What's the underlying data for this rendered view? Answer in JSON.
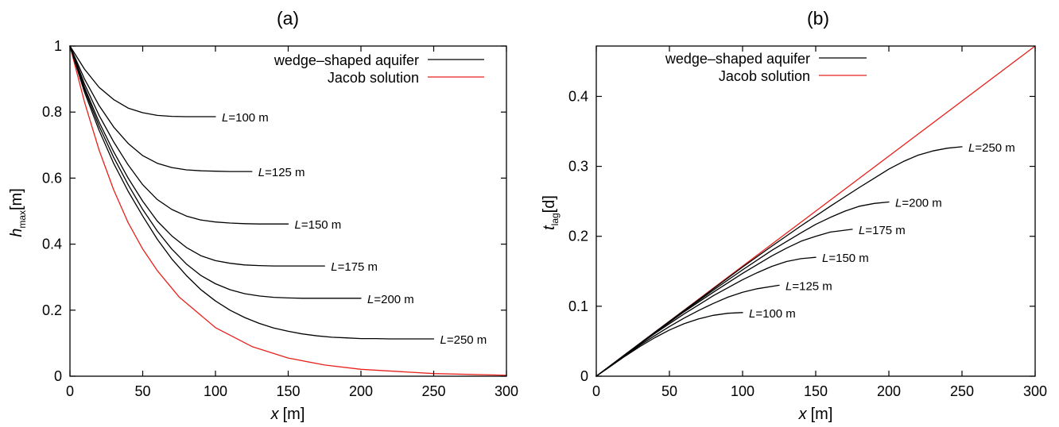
{
  "chart_data": [
    {
      "type": "line",
      "title": "(a)",
      "xlabel": {
        "symbol": "x",
        "unit": "[m]"
      },
      "ylabel": {
        "symbol": "h",
        "sub": "max",
        "unit": "[m]"
      },
      "xlim": [
        0,
        300
      ],
      "ylim": [
        0,
        1
      ],
      "xticks": [
        0,
        50,
        100,
        150,
        200,
        250,
        300
      ],
      "yticks": [
        0,
        0.2,
        0.4,
        0.6,
        0.8,
        1
      ],
      "ytick_labels": [
        "0",
        "0.2",
        "0.4",
        "0.6",
        "0.8",
        "1"
      ],
      "grid": false,
      "legend": {
        "placement": "top-right",
        "entries": [
          {
            "label": "wedge–shaped aquifer",
            "color": "#000000"
          },
          {
            "label": "Jacob solution",
            "color": "#e8211c"
          }
        ]
      },
      "series": [
        {
          "name": "Jacob solution",
          "color": "#e8211c",
          "x": [
            0,
            10,
            20,
            30,
            40,
            50,
            60,
            75,
            100,
            125,
            150,
            175,
            200,
            250,
            300
          ],
          "y": [
            1.0,
            0.83,
            0.685,
            0.565,
            0.465,
            0.385,
            0.32,
            0.24,
            0.147,
            0.09,
            0.055,
            0.034,
            0.021,
            0.008,
            0.003
          ]
        },
        {
          "label": "L=100 m",
          "color": "#000000",
          "x": [
            0,
            10,
            20,
            30,
            40,
            50,
            60,
            70,
            80,
            90,
            100
          ],
          "y": [
            1.0,
            0.93,
            0.875,
            0.838,
            0.812,
            0.798,
            0.79,
            0.787,
            0.786,
            0.786,
            0.786
          ]
        },
        {
          "label": "L=125 m",
          "color": "#000000",
          "x": [
            0,
            10,
            20,
            30,
            40,
            50,
            60,
            70,
            80,
            90,
            100,
            110,
            125
          ],
          "y": [
            1.0,
            0.9,
            0.82,
            0.755,
            0.705,
            0.668,
            0.645,
            0.632,
            0.625,
            0.622,
            0.621,
            0.62,
            0.62
          ]
        },
        {
          "label": "L=150 m",
          "color": "#000000",
          "x": [
            0,
            10,
            20,
            30,
            40,
            50,
            60,
            70,
            80,
            90,
            100,
            110,
            120,
            130,
            150
          ],
          "y": [
            1.0,
            0.885,
            0.79,
            0.71,
            0.64,
            0.58,
            0.535,
            0.505,
            0.485,
            0.473,
            0.467,
            0.464,
            0.462,
            0.461,
            0.461
          ]
        },
        {
          "label": "L=175 m",
          "color": "#000000",
          "x": [
            0,
            10,
            20,
            30,
            40,
            50,
            60,
            70,
            80,
            90,
            100,
            110,
            120,
            130,
            140,
            150,
            175
          ],
          "y": [
            1.0,
            0.875,
            0.77,
            0.68,
            0.6,
            0.53,
            0.47,
            0.425,
            0.39,
            0.365,
            0.35,
            0.342,
            0.337,
            0.335,
            0.334,
            0.334,
            0.334
          ]
        },
        {
          "label": "L=200 m",
          "color": "#000000",
          "x": [
            0,
            10,
            20,
            30,
            40,
            50,
            60,
            70,
            80,
            90,
            100,
            110,
            120,
            130,
            140,
            150,
            160,
            170,
            180,
            200
          ],
          "y": [
            1.0,
            0.868,
            0.758,
            0.663,
            0.58,
            0.505,
            0.44,
            0.385,
            0.34,
            0.305,
            0.28,
            0.262,
            0.25,
            0.243,
            0.239,
            0.237,
            0.236,
            0.236,
            0.236,
            0.236
          ]
        },
        {
          "label": "L=250 m",
          "color": "#000000",
          "x": [
            0,
            10,
            20,
            30,
            40,
            50,
            60,
            70,
            80,
            90,
            100,
            110,
            120,
            130,
            140,
            150,
            160,
            170,
            180,
            190,
            200,
            210,
            220,
            230,
            250
          ],
          "y": [
            1.0,
            0.86,
            0.745,
            0.645,
            0.56,
            0.485,
            0.415,
            0.355,
            0.305,
            0.262,
            0.228,
            0.2,
            0.178,
            0.16,
            0.146,
            0.136,
            0.128,
            0.122,
            0.118,
            0.116,
            0.114,
            0.114,
            0.113,
            0.113,
            0.113
          ]
        }
      ],
      "curve_labels": [
        {
          "prefix": "L",
          "text": "=100 m"
        },
        {
          "prefix": "L",
          "text": "=125 m"
        },
        {
          "prefix": "L",
          "text": "=150 m"
        },
        {
          "prefix": "L",
          "text": "=175 m"
        },
        {
          "prefix": "L",
          "text": "=200 m"
        },
        {
          "prefix": "L",
          "text": "=250 m"
        }
      ]
    },
    {
      "type": "line",
      "title": "(b)",
      "xlabel": {
        "symbol": "x",
        "unit": "[m]"
      },
      "ylabel": {
        "symbol": "t",
        "sub": "lag",
        "unit": "[d]"
      },
      "xlim": [
        0,
        300
      ],
      "ylim": [
        0,
        0.472
      ],
      "xticks": [
        0,
        50,
        100,
        150,
        200,
        250,
        300
      ],
      "yticks": [
        0,
        0.1,
        0.2,
        0.3,
        0.4
      ],
      "ytick_labels": [
        "0",
        "0.1",
        "0.2",
        "0.3",
        "0.4"
      ],
      "grid": false,
      "legend": {
        "placement": "top-left",
        "entries": [
          {
            "label": "wedge–shaped aquifer",
            "color": "#000000"
          },
          {
            "label": "Jacob solution",
            "color": "#e8211c"
          }
        ]
      },
      "series": [
        {
          "name": "Jacob solution",
          "color": "#e8211c",
          "x": [
            0,
            300
          ],
          "y": [
            0,
            0.472
          ]
        },
        {
          "label": "L=100 m",
          "color": "#000000",
          "x": [
            0,
            10,
            20,
            30,
            40,
            50,
            60,
            70,
            80,
            90,
            100
          ],
          "y": [
            0,
            0.0145,
            0.029,
            0.0425,
            0.055,
            0.066,
            0.075,
            0.082,
            0.087,
            0.09,
            0.091
          ]
        },
        {
          "label": "L=125 m",
          "color": "#000000",
          "x": [
            0,
            10,
            20,
            30,
            40,
            50,
            60,
            70,
            80,
            90,
            100,
            110,
            125
          ],
          "y": [
            0,
            0.015,
            0.03,
            0.0445,
            0.058,
            0.071,
            0.083,
            0.094,
            0.104,
            0.113,
            0.12,
            0.125,
            0.13
          ]
        },
        {
          "label": "L=150 m",
          "color": "#000000",
          "x": [
            0,
            20,
            40,
            60,
            80,
            100,
            110,
            120,
            130,
            140,
            150
          ],
          "y": [
            0,
            0.031,
            0.061,
            0.089,
            0.115,
            0.138,
            0.148,
            0.157,
            0.164,
            0.168,
            0.17
          ]
        },
        {
          "label": "L=175 m",
          "color": "#000000",
          "x": [
            0,
            20,
            40,
            60,
            80,
            100,
            120,
            130,
            140,
            150,
            160,
            175
          ],
          "y": [
            0,
            0.031,
            0.062,
            0.092,
            0.12,
            0.147,
            0.172,
            0.183,
            0.193,
            0.2,
            0.206,
            0.21
          ]
        },
        {
          "label": "L=200 m",
          "color": "#000000",
          "x": [
            0,
            20,
            40,
            60,
            80,
            100,
            120,
            140,
            150,
            160,
            170,
            180,
            190,
            200
          ],
          "y": [
            0,
            0.031,
            0.062,
            0.093,
            0.123,
            0.152,
            0.18,
            0.205,
            0.217,
            0.227,
            0.236,
            0.243,
            0.247,
            0.249
          ]
        },
        {
          "label": "L=250 m",
          "color": "#000000",
          "x": [
            0,
            20,
            40,
            60,
            80,
            100,
            120,
            140,
            160,
            180,
            190,
            200,
            210,
            220,
            230,
            240,
            250
          ],
          "y": [
            0,
            0.0315,
            0.063,
            0.094,
            0.125,
            0.156,
            0.186,
            0.215,
            0.243,
            0.27,
            0.283,
            0.296,
            0.307,
            0.316,
            0.322,
            0.326,
            0.328
          ]
        }
      ],
      "curve_labels": [
        {
          "prefix": "L",
          "text": "=100 m"
        },
        {
          "prefix": "L",
          "text": "=125 m"
        },
        {
          "prefix": "L",
          "text": "=150 m"
        },
        {
          "prefix": "L",
          "text": "=175 m"
        },
        {
          "prefix": "L",
          "text": "=200 m"
        },
        {
          "prefix": "L",
          "text": "=250 m"
        }
      ]
    }
  ]
}
